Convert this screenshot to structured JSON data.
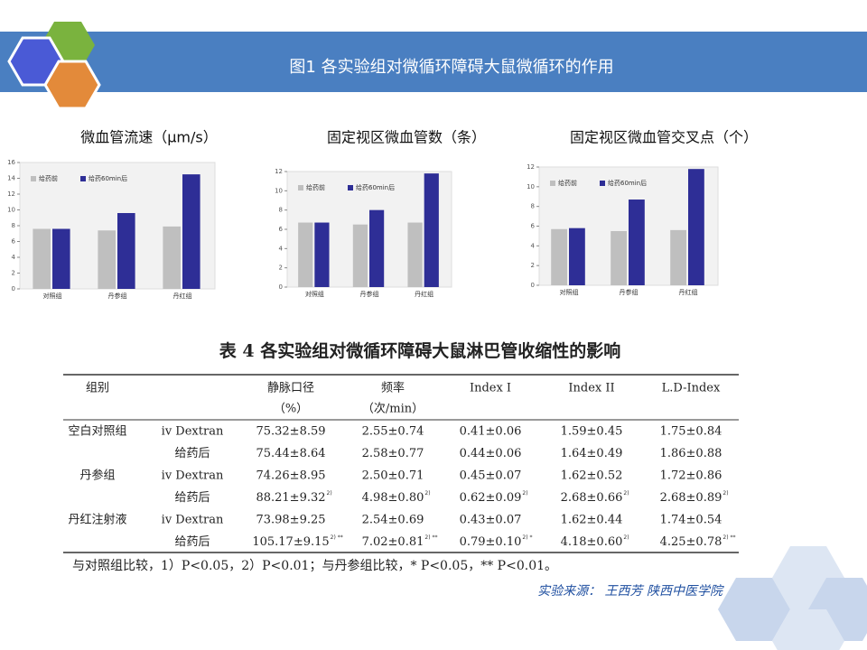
{
  "header": {
    "title": "图1 各实验组对微循环障碍大鼠微循环的作用"
  },
  "chart_data": [
    {
      "type": "bar",
      "title": "微血管流速（μm/s）",
      "categories": [
        "对照组",
        "丹参组",
        "丹红组"
      ],
      "series": [
        {
          "name": "给药前",
          "color": "#bfbfbf",
          "values": [
            7.6,
            7.4,
            7.9
          ]
        },
        {
          "name": "给药60min后",
          "color": "#2e2e96",
          "values": [
            7.6,
            9.6,
            14.5
          ]
        }
      ],
      "ylim": [
        0,
        16
      ],
      "yticks": [
        0,
        2,
        4,
        6,
        8,
        10,
        12,
        14,
        16
      ],
      "legend": "top-left"
    },
    {
      "type": "bar",
      "title": "固定视区微血管数（条）",
      "categories": [
        "对照组",
        "丹参组",
        "丹红组"
      ],
      "series": [
        {
          "name": "给药前",
          "color": "#bfbfbf",
          "values": [
            6.7,
            6.5,
            6.7
          ]
        },
        {
          "name": "给药60min后",
          "color": "#2e2e96",
          "values": [
            6.7,
            8.0,
            11.8
          ]
        }
      ],
      "ylim": [
        0,
        12
      ],
      "yticks": [
        0,
        2,
        4,
        6,
        8,
        10,
        12
      ],
      "legend": "top-left"
    },
    {
      "type": "bar",
      "title": "固定视区微血管交叉点（个）",
      "categories": [
        "对照组",
        "丹参组",
        "丹红组"
      ],
      "series": [
        {
          "name": "给药前",
          "color": "#bfbfbf",
          "values": [
            5.7,
            5.5,
            5.6
          ]
        },
        {
          "name": "给药60min后",
          "color": "#2e2e96",
          "values": [
            5.8,
            8.7,
            11.8
          ]
        }
      ],
      "ylim": [
        0,
        12
      ],
      "yticks": [
        0,
        2,
        4,
        6,
        8,
        10,
        12
      ],
      "legend": "top-left"
    }
  ],
  "table": {
    "title": "表 4  各实验组对微循环障碍大鼠淋巴管收缩性的影响",
    "group_header": "组别",
    "columns": [
      {
        "label": "静脉口径",
        "unit": "（%）"
      },
      {
        "label": "频率",
        "unit": "（次/min）"
      },
      {
        "label": "Index I"
      },
      {
        "label": "Index II"
      },
      {
        "label": "L.D-Index"
      }
    ],
    "groups": [
      {
        "name": "空白对照组",
        "rows": [
          {
            "treatment": "iv Dextran",
            "cells": [
              {
                "text": "75.32±8.59"
              },
              {
                "text": "2.55±0.74"
              },
              {
                "text": "0.41±0.06"
              },
              {
                "text": "1.59±0.45"
              },
              {
                "text": "1.75±0.84"
              }
            ]
          },
          {
            "treatment": "给药后",
            "cells": [
              {
                "text": "75.44±8.64"
              },
              {
                "text": "2.58±0.77"
              },
              {
                "text": "0.44±0.06"
              },
              {
                "text": "1.64±0.49"
              },
              {
                "text": "1.86±0.88"
              }
            ]
          }
        ]
      },
      {
        "name": "丹参组",
        "rows": [
          {
            "treatment": "iv Dextran",
            "cells": [
              {
                "text": "74.26±8.95"
              },
              {
                "text": "2.50±0.71"
              },
              {
                "text": "0.45±0.07"
              },
              {
                "text": "1.62±0.52"
              },
              {
                "text": "1.72±0.86"
              }
            ]
          },
          {
            "treatment": "给药后",
            "cells": [
              {
                "text": "88.21±9.32",
                "sup": "2)"
              },
              {
                "text": "4.98±0.80",
                "sup": "2)"
              },
              {
                "text": "0.62±0.09",
                "sup": "2)"
              },
              {
                "text": "2.68±0.66",
                "sup": "2)"
              },
              {
                "text": "2.68±0.89",
                "sup": "2)"
              }
            ]
          }
        ]
      },
      {
        "name": "丹红注射液",
        "rows": [
          {
            "treatment": "iv Dextran",
            "cells": [
              {
                "text": "73.98±9.25"
              },
              {
                "text": "2.54±0.69"
              },
              {
                "text": "0.43±0.07"
              },
              {
                "text": "1.62±0.44"
              },
              {
                "text": "1.74±0.54"
              }
            ]
          },
          {
            "treatment": "给药后",
            "cells": [
              {
                "text": "105.17±9.15",
                "sup": "2) **"
              },
              {
                "text": "7.02±0.81",
                "sup": "2) **"
              },
              {
                "text": "0.79±0.10",
                "sup": "2) *"
              },
              {
                "text": "4.18±0.60",
                "sup": "2)"
              },
              {
                "text": "4.25±0.78",
                "sup": "2) **"
              }
            ]
          }
        ]
      }
    ],
    "footnote": "与对照组比较，1）P<0.05，2）P<0.01；与丹参组比较，* P<0.05，** P<0.01。"
  },
  "source": "实验来源：  王西芳   陕西中医学院"
}
